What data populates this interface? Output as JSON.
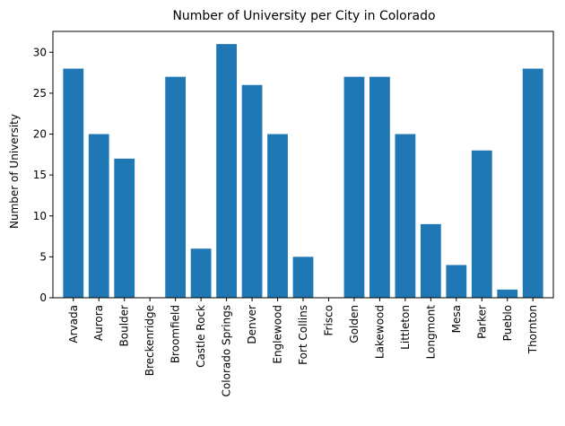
{
  "chart_data": {
    "type": "bar",
    "title": "Number of University per City in Colorado",
    "xlabel": "",
    "ylabel": "Number of University",
    "ylim": [
      0,
      32.55
    ],
    "yticks": [
      0,
      5,
      10,
      15,
      20,
      25,
      30
    ],
    "grid": false,
    "bar_color": "#1f77b4",
    "categories": [
      "Arvada",
      "Aurora",
      "Boulder",
      "Breckenridge",
      "Broomfield",
      "Castle Rock",
      "Colorado Springs",
      "Denver",
      "Englewood",
      "Fort Collins",
      "Frisco",
      "Golden",
      "Lakewood",
      "Littleton",
      "Longmont",
      "Mesa",
      "Parker",
      "Pueblo",
      "Thornton"
    ],
    "values": [
      28,
      20,
      17,
      0,
      27,
      6,
      31,
      26,
      20,
      5,
      0,
      27,
      27,
      20,
      9,
      4,
      18,
      1,
      28
    ]
  }
}
